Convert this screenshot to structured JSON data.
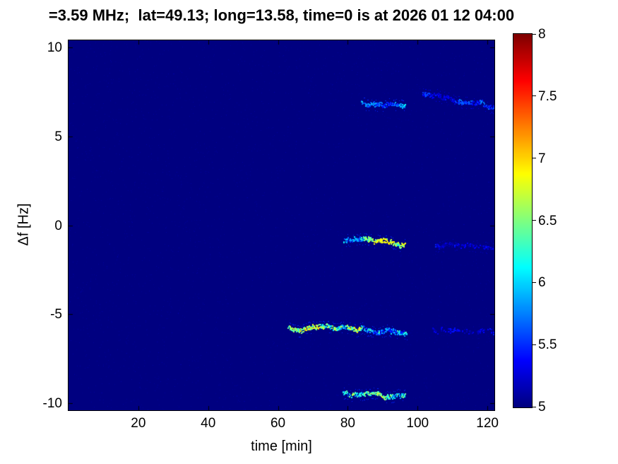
{
  "chart_data": {
    "type": "heatmap",
    "title": "=3.59 MHz;  lat=49.13; long=13.58, time=0 is at 2026 01 12 04:00",
    "xlabel": "time [min]",
    "ylabel": "Δf [Hz]",
    "xlim": [
      0,
      122
    ],
    "ylim": [
      -10.4,
      10.4
    ],
    "x_ticks": [
      20,
      40,
      60,
      80,
      100,
      120
    ],
    "y_ticks": [
      -10,
      -5,
      0,
      5,
      10
    ],
    "colormap": "jet",
    "clim": [
      5,
      8
    ],
    "colorbar_ticks": [
      5,
      5.5,
      6,
      6.5,
      7,
      7.5,
      8
    ],
    "background_value": 5.0,
    "noise_value_max": 5.1,
    "grid": false,
    "legend": "colorbar-right",
    "seed": 1337,
    "streaks": [
      {
        "name": "upper-trace-main",
        "x_start": 84,
        "x_end": 96.5,
        "y_start": 6.9,
        "y_end": 6.85,
        "v_min": 5.4,
        "v_max": 6.5,
        "density": 0.95,
        "wander": 0.15
      },
      {
        "name": "upper-trace-right",
        "x_start": 101.5,
        "x_end": 122,
        "y_start": 7.35,
        "y_end": 6.7,
        "v_min": 5.2,
        "v_max": 6.1,
        "density": 0.75,
        "wander": 0.12
      },
      {
        "name": "mid-trace-main",
        "x_start": 79,
        "x_end": 96.5,
        "y_start": -0.85,
        "y_end": -1.05,
        "v_min": 5.4,
        "v_max": 6.9,
        "density": 0.95,
        "wander": 0.15
      },
      {
        "name": "mid-trace-right",
        "x_start": 105,
        "x_end": 122,
        "y_start": -1.1,
        "y_end": -1.3,
        "v_min": 5.1,
        "v_max": 5.9,
        "density": 0.55,
        "wander": 0.1
      },
      {
        "name": "lower-trace-main",
        "x_start": 63,
        "x_end": 97,
        "y_start": -5.75,
        "y_end": -6.05,
        "v_min": 5.4,
        "v_max": 7.3,
        "density": 0.97,
        "wander": 0.18
      },
      {
        "name": "lower-trace-right",
        "x_start": 104,
        "x_end": 122,
        "y_start": -5.9,
        "y_end": -6.0,
        "v_min": 5.0,
        "v_max": 5.5,
        "density": 0.35,
        "wander": 0.08
      },
      {
        "name": "bottom-trace",
        "x_start": 78.5,
        "x_end": 96.5,
        "y_start": -9.45,
        "y_end": -9.65,
        "v_min": 5.4,
        "v_max": 7.1,
        "density": 0.95,
        "wander": 0.12
      }
    ]
  }
}
